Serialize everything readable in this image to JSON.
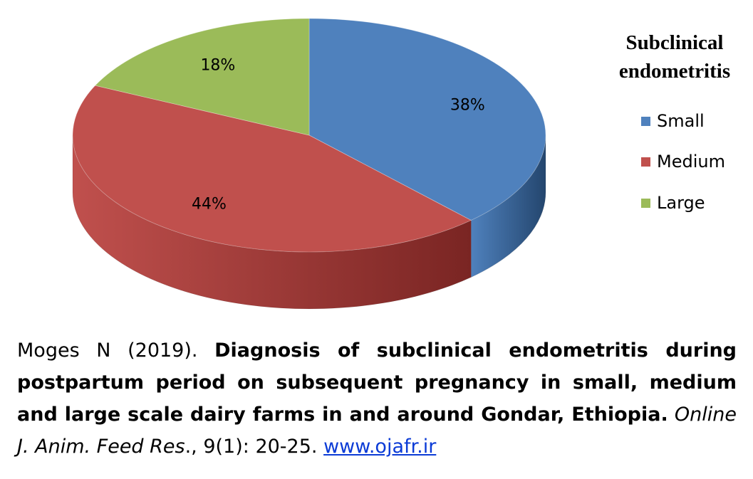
{
  "chart_data": {
    "type": "pie",
    "title": "Subclinical endometritis",
    "title_lines": [
      "Subclinical",
      "endometritis"
    ],
    "legend_placement": "right",
    "categories": [
      "Small",
      "Medium",
      "Large"
    ],
    "values": [
      38,
      44,
      18
    ],
    "labels": [
      "38%",
      "44%",
      "18%"
    ],
    "colors": [
      "#4F81BD",
      "#C0504D",
      "#9BBB59"
    ],
    "side_colors": [
      "#24466E",
      "#7A2523",
      "#5A7030"
    ],
    "style": "3d"
  },
  "caption": {
    "author": "Moges N (2019). ",
    "title": "Diagnosis of subclinical endometritis during postpartum period on subsequent pregnancy in small, medium and large scale dairy farms in and around Gondar, Ethiopia.",
    "journal": "Online J. Anim. Feed Res",
    "after_journal": "., 9(1): 20-25. ",
    "link": "www.ojafr.ir"
  }
}
